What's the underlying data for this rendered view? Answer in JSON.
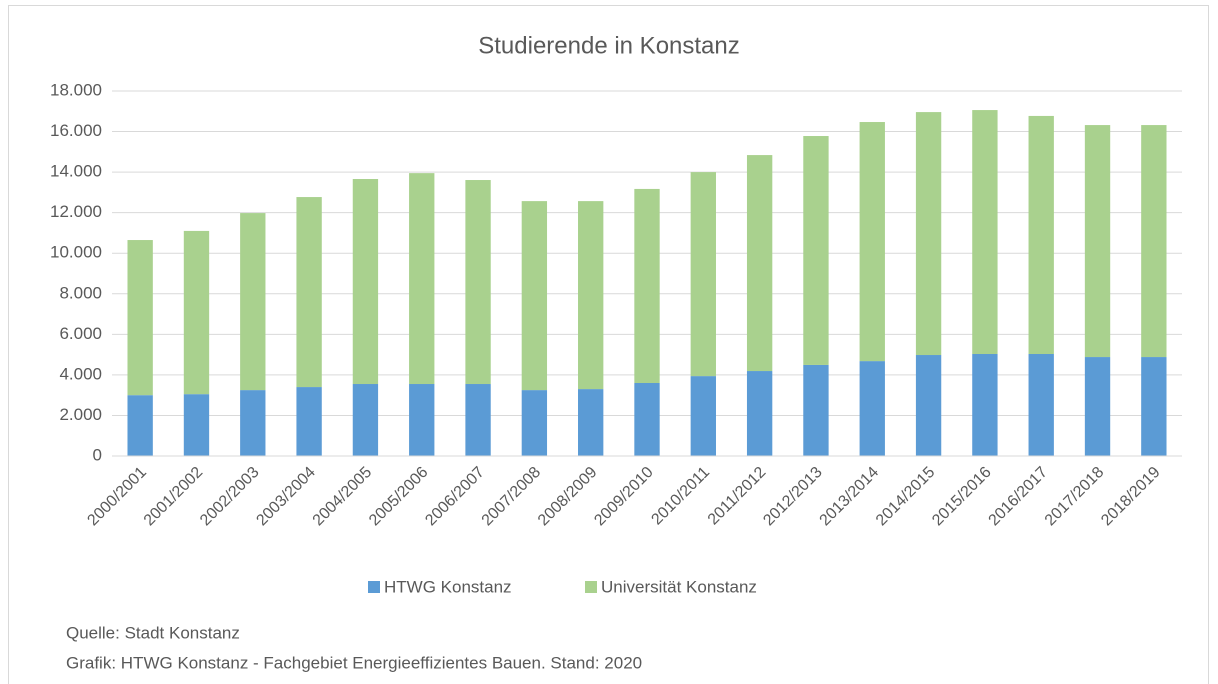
{
  "chart_data": {
    "type": "stacked_bar",
    "title": "Studierende in Konstanz",
    "categories": [
      "2000/2001",
      "2001/2002",
      "2002/2003",
      "2003/2004",
      "2004/2005",
      "2005/2006",
      "2006/2007",
      "2007/2008",
      "2008/2009",
      "2009/2010",
      "2010/2011",
      "2011/2012",
      "2012/2013",
      "2013/2014",
      "2014/2015",
      "2015/2016",
      "2016/2017",
      "2017/2018",
      "2018/2019"
    ],
    "series": [
      {
        "name": "HTWG Konstanz",
        "color": "#5b9bd5",
        "values": [
          3000,
          3050,
          3250,
          3400,
          3550,
          3550,
          3550,
          3250,
          3300,
          3600,
          3940,
          4190,
          4490,
          4680,
          4980,
          5030,
          5030,
          4880,
          4880
        ]
      },
      {
        "name": "Universität Konstanz",
        "color": "#a9d18e",
        "values": [
          7650,
          8050,
          8730,
          9370,
          10110,
          10400,
          10060,
          9320,
          9270,
          9570,
          10060,
          10650,
          11290,
          11790,
          11980,
          12030,
          11740,
          11440,
          11440
        ]
      }
    ],
    "ylim": [
      0,
      18000
    ],
    "yticks": [
      0,
      {
        "value": 2000,
        "label": "2.000"
      },
      {
        "value": 4000,
        "label": "4.000"
      },
      {
        "value": 6000,
        "label": "6.000"
      },
      {
        "value": 8000,
        "label": "8.000"
      },
      {
        "value": 10000,
        "label": "10.000"
      },
      {
        "value": 12000,
        "label": "12.000"
      },
      {
        "value": 14000,
        "label": "14.000"
      },
      {
        "value": 16000,
        "label": "16.000"
      },
      {
        "value": 18000,
        "label": "18.000"
      }
    ],
    "grid": true,
    "legend": "bottom"
  },
  "footer": [
    "Quelle: Stadt Konstanz",
    "Grafik: HTWG Konstanz - Fachgebiet Energieeffizientes Bauen. Stand: 2020"
  ]
}
